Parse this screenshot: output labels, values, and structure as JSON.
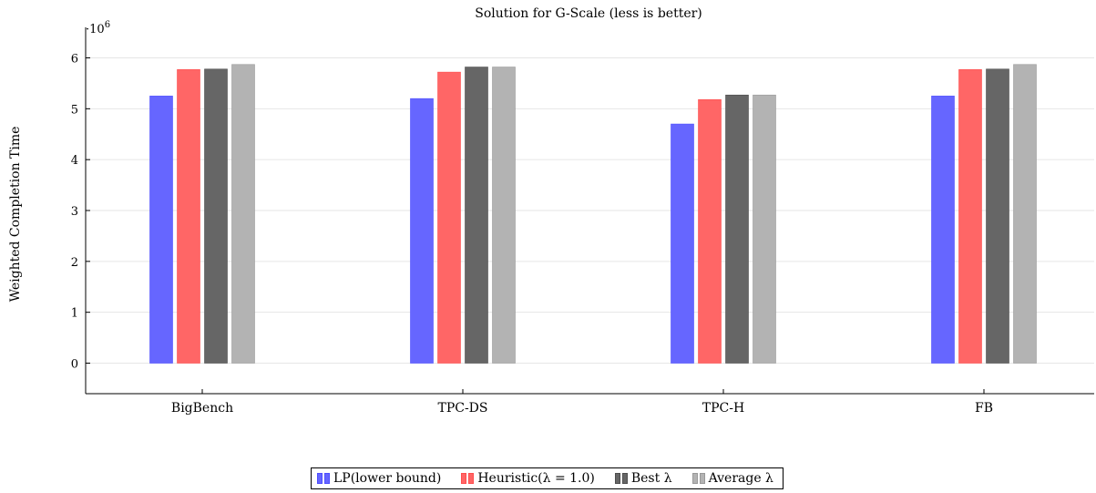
{
  "chart_data": {
    "type": "bar",
    "title": "Solution for G-Scale (less is better)",
    "ylabel": "Weighted Completion Time",
    "xlabel": "",
    "y_multiplier_label": "·10",
    "y_multiplier_exponent": "6",
    "ylim": [
      -0.6,
      6.6
    ],
    "yticks": [
      0,
      1,
      2,
      3,
      4,
      5,
      6
    ],
    "grid": true,
    "legend_position": "bottom",
    "categories": [
      "BigBench",
      "TPC-DS",
      "TPC-H",
      "FB"
    ],
    "series": [
      {
        "name": "LP(lower bound)",
        "color": "#6666ff",
        "edge": "#4d4dff",
        "values": [
          5.25,
          5.2,
          4.7,
          5.25
        ]
      },
      {
        "name": "Heuristic(λ = 1.0)",
        "color": "#ff6666",
        "edge": "#ff4d4d",
        "values": [
          5.77,
          5.72,
          5.18,
          5.77
        ]
      },
      {
        "name": "Best λ",
        "color": "#666666",
        "edge": "#4d4d4d",
        "values": [
          5.78,
          5.82,
          5.27,
          5.78
        ]
      },
      {
        "name": "Average λ",
        "color": "#b3b3b3",
        "edge": "#999999",
        "values": [
          5.87,
          5.82,
          5.27,
          5.87
        ]
      }
    ]
  }
}
